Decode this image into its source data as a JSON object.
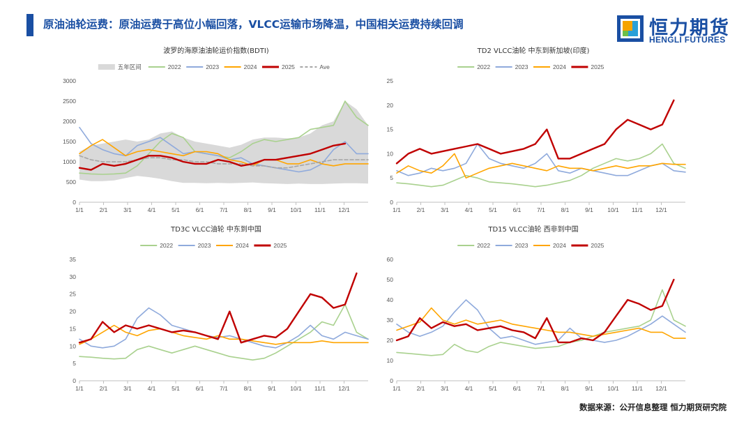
{
  "header": {
    "title": "原油油轮运费：原油运费于高位小幅回落，VLCC运输市场降温，中国相关运费持续回调"
  },
  "logo": {
    "name_cn": "恒力期货",
    "name_en": "HENGLI FUTURES"
  },
  "footer": {
    "source": "数据来源：公开信息整理  恒力期货研究院"
  },
  "colors": {
    "band": "#d9d9d9",
    "y2022": "#a9d18e",
    "y2023": "#8faadc",
    "y2024": "#ffa500",
    "y2025": "#c00000",
    "ave": "#a6a6a6",
    "brand": "#1a4fa3"
  },
  "chart_data": [
    {
      "id": "bdti",
      "type": "line",
      "title": "波罗的海原油油轮运价指数(BDTI)",
      "x_ticks": [
        "1/1",
        "2/1",
        "3/1",
        "4/1",
        "5/1",
        "6/1",
        "7/1",
        "8/1",
        "9/1",
        "10/1",
        "11/1",
        "12/1"
      ],
      "ylim": [
        0,
        3000
      ],
      "y_ticks": [
        0,
        500,
        1000,
        1500,
        2000,
        2500,
        3000
      ],
      "legend": [
        "五年区间",
        "2022",
        "2023",
        "2024",
        "2025",
        "Ave"
      ],
      "band": {
        "name": "五年区间",
        "low": [
          560,
          520,
          520,
          540,
          600,
          650,
          620,
          580,
          520,
          480,
          480,
          470,
          480,
          470,
          480,
          490,
          470,
          460,
          450,
          460,
          450,
          450,
          460,
          470,
          470,
          460
        ],
        "high": [
          1250,
          1400,
          1450,
          1500,
          1550,
          1500,
          1550,
          1700,
          1750,
          1600,
          1500,
          1450,
          1400,
          1350,
          1420,
          1550,
          1600,
          1600,
          1580,
          1600,
          1700,
          1900,
          2000,
          2500,
          2300,
          1900
        ]
      },
      "series": [
        {
          "name": "2022",
          "values": [
            720,
            700,
            690,
            700,
            720,
            900,
            1200,
            1500,
            1700,
            1600,
            1250,
            1200,
            1150,
            1100,
            1250,
            1450,
            1550,
            1500,
            1550,
            1600,
            1800,
            1850,
            1900,
            2500,
            2100,
            1900
          ]
        },
        {
          "name": "2023",
          "values": [
            1850,
            1450,
            1300,
            1200,
            1150,
            1400,
            1500,
            1600,
            1400,
            1200,
            1250,
            1200,
            1150,
            1050,
            1100,
            950,
            900,
            850,
            800,
            750,
            800,
            950,
            1300,
            1500,
            1200,
            1200
          ]
        },
        {
          "name": "2024",
          "values": [
            1200,
            1400,
            1550,
            1350,
            1150,
            1250,
            1300,
            1250,
            1200,
            1150,
            1250,
            1250,
            1200,
            1050,
            1000,
            900,
            1050,
            1050,
            950,
            950,
            1050,
            950,
            900,
            950,
            950,
            950
          ]
        },
        {
          "name": "2025",
          "values": [
            850,
            800,
            950,
            900,
            950,
            1050,
            1150,
            1150,
            1100,
            1000,
            950,
            950,
            1050,
            1000,
            900,
            950,
            1050,
            1050,
            1100,
            1150,
            1200,
            1300,
            1400,
            1450,
            null,
            null
          ]
        },
        {
          "name": "Ave",
          "values": [
            1150,
            1050,
            1000,
            1000,
            1000,
            1050,
            1100,
            1100,
            1050,
            1050,
            1000,
            1000,
            950,
            950,
            950,
            900,
            900,
            850,
            850,
            900,
            950,
            1000,
            1050,
            1050,
            1050,
            1050
          ]
        }
      ]
    },
    {
      "id": "td2",
      "type": "line",
      "title": "TD2 VLCC油轮 中东到新加坡(印度)",
      "x_ticks": [
        "1/1",
        "2/1",
        "3/1",
        "4/1",
        "5/1",
        "6/1",
        "7/1",
        "8/1",
        "9/1",
        "10/1",
        "11/1",
        "12/1"
      ],
      "ylim": [
        0,
        25
      ],
      "y_ticks": [
        0,
        5,
        10,
        15,
        20,
        25
      ],
      "legend": [
        "2022",
        "2023",
        "2024",
        "2025"
      ],
      "series": [
        {
          "name": "2022",
          "values": [
            4,
            3.8,
            3.5,
            3.2,
            3.5,
            4.5,
            5.5,
            5,
            4.2,
            4,
            3.8,
            3.5,
            3.2,
            3.5,
            4,
            4.5,
            5.5,
            7,
            8,
            9,
            8.5,
            9,
            10,
            12,
            8,
            7
          ]
        },
        {
          "name": "2023",
          "values": [
            6.5,
            5.5,
            6,
            7,
            6.5,
            7,
            8,
            12,
            9,
            8,
            7.5,
            7,
            8,
            10,
            6.5,
            6,
            7,
            6.5,
            6,
            5.5,
            5.5,
            6.5,
            7.5,
            8,
            6.5,
            6.2
          ]
        },
        {
          "name": "2024",
          "values": [
            6,
            7.5,
            6.5,
            6,
            7.5,
            10,
            5,
            6,
            7,
            7.5,
            8,
            7.5,
            7,
            6.5,
            7.5,
            7,
            7,
            6.5,
            7,
            7.5,
            7,
            7.5,
            7.5,
            8,
            7.8,
            7.8
          ]
        },
        {
          "name": "2025",
          "values": [
            8,
            10,
            11,
            10,
            10.5,
            11,
            11.5,
            12,
            11,
            10,
            10.5,
            11,
            12,
            15,
            9,
            9,
            10,
            11,
            12,
            15,
            17,
            16,
            15,
            16,
            21,
            null
          ]
        }
      ]
    },
    {
      "id": "td3c",
      "type": "line",
      "title": "TD3C VLCC油轮 中东到中国",
      "x_ticks": [
        "1/1",
        "2/1",
        "3/1",
        "4/1",
        "5/1",
        "6/1",
        "7/1",
        "8/1",
        "9/1",
        "10/1",
        "11/1",
        "12/1"
      ],
      "ylim": [
        0,
        35
      ],
      "y_ticks": [
        0,
        5,
        10,
        15,
        20,
        25,
        30,
        35
      ],
      "legend": [
        "2022",
        "2023",
        "2024",
        "2025"
      ],
      "series": [
        {
          "name": "2022",
          "values": [
            7,
            6.8,
            6.5,
            6.3,
            6.5,
            9,
            10,
            9,
            8,
            9,
            10,
            9,
            8,
            7,
            6.5,
            6,
            6.5,
            8,
            10,
            12,
            14,
            17,
            16,
            22,
            14,
            12
          ]
        },
        {
          "name": "2023",
          "values": [
            12,
            10,
            9.5,
            10,
            12,
            18,
            21,
            19,
            16,
            15,
            14,
            13,
            12.5,
            13,
            12,
            11,
            10,
            9.5,
            11,
            13,
            16,
            13,
            12,
            14,
            13,
            12
          ]
        },
        {
          "name": "2024",
          "values": [
            10.5,
            12,
            14,
            16,
            14,
            13,
            14.5,
            15,
            14,
            13,
            12.5,
            12,
            13,
            12,
            12,
            11.5,
            11,
            10.5,
            11,
            11,
            11,
            11.5,
            11,
            11,
            11,
            11
          ]
        },
        {
          "name": "2025",
          "values": [
            11,
            12,
            17,
            14,
            16,
            15,
            16,
            15,
            14,
            14.5,
            14,
            13,
            12,
            20,
            11,
            12,
            13,
            12.5,
            15,
            20,
            25,
            24,
            21,
            22,
            31,
            null
          ]
        }
      ]
    },
    {
      "id": "td15",
      "type": "line",
      "title": "TD15 VLCC油轮 西非到中国",
      "x_ticks": [
        "1/1",
        "2/1",
        "3/1",
        "4/1",
        "5/1",
        "6/1",
        "7/1",
        "8/1",
        "9/1",
        "10/1",
        "11/1",
        "12/1"
      ],
      "ylim": [
        0,
        60
      ],
      "y_ticks": [
        0,
        10,
        20,
        30,
        40,
        50,
        60
      ],
      "legend": [
        "2022",
        "2023",
        "2024",
        "2025"
      ],
      "series": [
        {
          "name": "2022",
          "values": [
            14,
            13.5,
            13,
            12.5,
            13,
            18,
            15,
            14,
            17,
            19,
            18,
            17,
            16,
            16.5,
            17,
            19,
            20,
            22,
            24,
            25,
            26,
            27,
            30,
            45,
            30,
            27
          ]
        },
        {
          "name": "2023",
          "values": [
            28,
            24,
            22,
            24,
            27,
            34,
            40,
            35,
            26,
            21,
            22,
            20,
            18,
            19,
            20,
            26,
            21,
            20,
            19,
            20,
            22,
            25,
            28,
            32,
            28,
            24
          ]
        },
        {
          "name": "2024",
          "values": [
            25,
            27,
            29,
            36,
            30,
            28,
            30,
            28,
            29,
            30,
            28,
            27,
            26,
            25,
            24,
            24,
            23,
            22,
            23,
            24,
            25,
            26,
            24,
            24,
            21,
            21
          ]
        },
        {
          "name": "2025",
          "values": [
            20,
            22,
            31,
            26,
            29,
            27,
            28,
            25,
            26,
            27,
            25,
            24,
            21,
            31,
            19,
            19,
            21,
            20,
            24,
            32,
            40,
            38,
            35,
            37,
            50,
            null
          ]
        }
      ]
    }
  ]
}
